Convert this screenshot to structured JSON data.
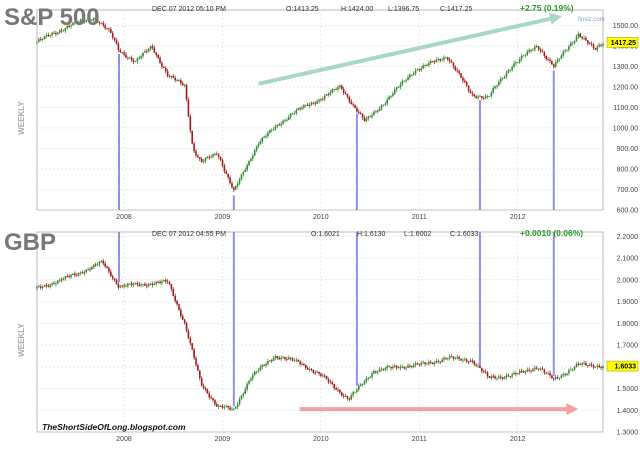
{
  "chart_data": [
    {
      "type": "candlestick",
      "title": "S&P 500",
      "ylabel": "WEEKLY",
      "date_text": "DEC 07 2012 05:10 PM",
      "ohlc_text": {
        "o": "O:1413.25",
        "h": "H:1424.00",
        "l": "L:1396.75",
        "c": "C:1417.25"
      },
      "change_text": "+2.75 (0.19%)",
      "last_price": "1417.25",
      "watermark": "finviz.com",
      "x_ticks": [
        "2008",
        "2009",
        "2010",
        "2011",
        "2012"
      ],
      "y_ticks": [
        "1500.00",
        "1400.00",
        "1300.00",
        "1200.00",
        "1100.00",
        "1000.00",
        "900.00",
        "800.00",
        "700.00",
        "600.00"
      ],
      "ylim": [
        600,
        1575
      ],
      "x_range": [
        "2007-03",
        "2012-12"
      ],
      "key_points": [
        {
          "date": "2007-03",
          "value": 1420
        },
        {
          "date": "2007-07",
          "value": 1500
        },
        {
          "date": "2007-10",
          "value": 1540
        },
        {
          "date": "2007-12",
          "value": 1460
        },
        {
          "date": "2008-01",
          "value": 1380
        },
        {
          "date": "2008-03",
          "value": 1320
        },
        {
          "date": "2008-05",
          "value": 1400
        },
        {
          "date": "2008-07",
          "value": 1250
        },
        {
          "date": "2008-09",
          "value": 1210
        },
        {
          "date": "2008-10",
          "value": 900
        },
        {
          "date": "2008-11",
          "value": 830
        },
        {
          "date": "2009-01",
          "value": 880
        },
        {
          "date": "2009-03",
          "value": 690
        },
        {
          "date": "2009-06",
          "value": 930
        },
        {
          "date": "2009-10",
          "value": 1070
        },
        {
          "date": "2010-01",
          "value": 1130
        },
        {
          "date": "2010-04",
          "value": 1200
        },
        {
          "date": "2010-07",
          "value": 1030
        },
        {
          "date": "2010-09",
          "value": 1110
        },
        {
          "date": "2011-01",
          "value": 1280
        },
        {
          "date": "2011-05",
          "value": 1350
        },
        {
          "date": "2011-08",
          "value": 1160
        },
        {
          "date": "2011-10",
          "value": 1150
        },
        {
          "date": "2012-01",
          "value": 1310
        },
        {
          "date": "2012-04",
          "value": 1400
        },
        {
          "date": "2012-06",
          "value": 1300
        },
        {
          "date": "2012-09",
          "value": 1460
        },
        {
          "date": "2012-11",
          "value": 1380
        },
        {
          "date": "2012-12",
          "value": 1417.25
        }
      ],
      "markers": [
        "2008-01",
        "2009-03",
        "2010-06",
        "2011-09",
        "2012-06"
      ],
      "trend_arrow": {
        "from": {
          "date": "2009-06",
          "value": 1215
        },
        "to": {
          "date": "2012-07",
          "value": 1545
        }
      },
      "colors": {
        "up": "#2e8b2e",
        "down": "#a01818",
        "marker": "#8f8ff0",
        "arrow": "#a9d8c2",
        "grid": "#dddddd",
        "tag": "#ffff00",
        "change": "#2a9a2a"
      }
    },
    {
      "type": "candlestick",
      "title": "GBP",
      "ylabel": "WEEKLY",
      "date_text": "DEC 07 2012 04:55 PM",
      "ohlc_text": {
        "o": "O:1.6021",
        "h": "H:1.6130",
        "l": "L:1.6002",
        "c": "C:1.6033"
      },
      "change_text": "+0.0010 (0.06%)",
      "last_price": "1.6033",
      "credit": "TheShortSideOfLong.blogspot.com",
      "x_ticks": [
        "2008",
        "2009",
        "2010",
        "2011",
        "2012"
      ],
      "y_ticks": [
        "2.2000",
        "2.1000",
        "2.0000",
        "1.9000",
        "1.8000",
        "1.7000",
        "1.6000",
        "1.5000",
        "1.4000",
        "1.3000"
      ],
      "ylim": [
        1.3,
        2.22
      ],
      "x_range": [
        "2007-03",
        "2012-12"
      ],
      "key_points": [
        {
          "date": "2007-03",
          "value": 1.96
        },
        {
          "date": "2007-06",
          "value": 2.0
        },
        {
          "date": "2007-08",
          "value": 2.03
        },
        {
          "date": "2007-11",
          "value": 2.08
        },
        {
          "date": "2008-01",
          "value": 1.97
        },
        {
          "date": "2008-04",
          "value": 1.98
        },
        {
          "date": "2008-07",
          "value": 1.99
        },
        {
          "date": "2008-09",
          "value": 1.8
        },
        {
          "date": "2008-11",
          "value": 1.52
        },
        {
          "date": "2009-01",
          "value": 1.42
        },
        {
          "date": "2009-03",
          "value": 1.4
        },
        {
          "date": "2009-05",
          "value": 1.55
        },
        {
          "date": "2009-08",
          "value": 1.65
        },
        {
          "date": "2009-11",
          "value": 1.62
        },
        {
          "date": "2010-02",
          "value": 1.55
        },
        {
          "date": "2010-05",
          "value": 1.45
        },
        {
          "date": "2010-08",
          "value": 1.58
        },
        {
          "date": "2010-11",
          "value": 1.6
        },
        {
          "date": "2011-02",
          "value": 1.61
        },
        {
          "date": "2011-05",
          "value": 1.64
        },
        {
          "date": "2011-08",
          "value": 1.63
        },
        {
          "date": "2011-10",
          "value": 1.55
        },
        {
          "date": "2012-01",
          "value": 1.56
        },
        {
          "date": "2012-04",
          "value": 1.6
        },
        {
          "date": "2012-06",
          "value": 1.54
        },
        {
          "date": "2012-09",
          "value": 1.61
        },
        {
          "date": "2012-12",
          "value": 1.6033
        }
      ],
      "markers": [
        "2008-01",
        "2009-03",
        "2010-06",
        "2011-09",
        "2012-06"
      ],
      "trend_arrow": {
        "from": {
          "date": "2009-11",
          "value": 1.405
        },
        "to": {
          "date": "2012-09",
          "value": 1.405
        }
      },
      "colors": {
        "up": "#2e8b2e",
        "down": "#a01818",
        "marker": "#8f8ff0",
        "arrow": "#f4a0a0",
        "grid": "#dddddd",
        "tag": "#ffff00",
        "change": "#2a9a2a"
      }
    }
  ]
}
